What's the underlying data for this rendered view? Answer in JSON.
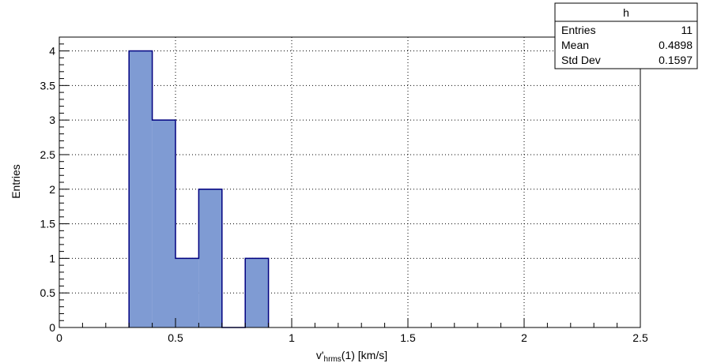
{
  "chart_data": {
    "type": "bar",
    "histogram_name": "h",
    "bin_edges": [
      0.3,
      0.4,
      0.5,
      0.6,
      0.7,
      0.8,
      0.9
    ],
    "values": [
      4,
      3,
      1,
      2,
      0,
      1
    ],
    "xlabel_main": "v'",
    "xlabel_sub": "hrms",
    "xlabel_rest": "(1)  [km/s]",
    "ylabel": "Entries",
    "xlim": [
      0,
      2.5
    ],
    "ylim": [
      0,
      4.2
    ],
    "x_ticks": [
      0,
      0.5,
      1,
      1.5,
      2,
      2.5
    ],
    "x_tick_labels": [
      "0",
      "0.5",
      "1",
      "1.5",
      "2",
      "2.5"
    ],
    "y_ticks": [
      0,
      0.5,
      1,
      1.5,
      2,
      2.5,
      3,
      3.5,
      4
    ],
    "y_tick_labels": [
      "0",
      "0.5",
      "1",
      "1.5",
      "2",
      "2.5",
      "3",
      "3.5",
      "4"
    ],
    "grid": true,
    "fill_color": "#7f9bd3",
    "line_color": "#000080",
    "stats": {
      "title": "h",
      "rows": [
        {
          "label": "Entries",
          "value": "11"
        },
        {
          "label": "Mean",
          "value": "0.4898"
        },
        {
          "label": "Std Dev",
          "value": "0.1597"
        }
      ]
    }
  }
}
